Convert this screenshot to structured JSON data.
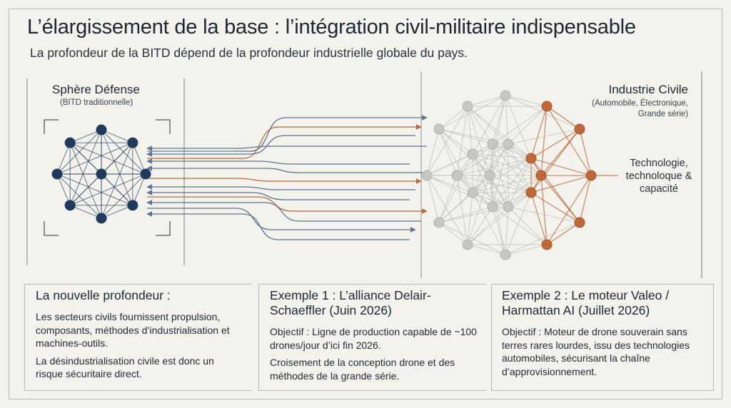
{
  "header": {
    "title": "L’élargissement de la base : l’intégration civil-militaire indispensable",
    "subtitle": "La profondeur de la BITD dépend de la profondeur industrielle globale du pays."
  },
  "defense": {
    "title": "Sphère Défense",
    "subtitle": "(BITD traditionnelle)"
  },
  "civil": {
    "title": "Industrie Civile",
    "subtitle": "(Automobile, Électronique, Grande série)",
    "tech_label": "Technologie, technoloque & capacité"
  },
  "cards": [
    {
      "title": "La nouvelle profondeur :",
      "paragraphs": [
        "Les secteurs civils fournissent propulsion, composants, méthodes d’industrialisation et machines-outils.",
        "La désindustrialisation civile est donc un risque sécuritaire direct."
      ]
    },
    {
      "title": "Exemple 1 : L’alliance Delair-Schaeffler (Juin 2026)",
      "paragraphs": [
        "Objectif : Ligne de production capable de ~100 drones/jour d’ici fin 2026.",
        "Croisement de la conception drone et des méthodes de la grande série."
      ]
    },
    {
      "title": "Exemple 2 : Le moteur Valeo / Harmattan AI (Juillet 2026)",
      "paragraphs": [
        "Objectif : Moteur de drone souverain sans terres rares lourdes, issu des technologies automobiles, sécurisant la chaîne d’approvisionnement."
      ]
    }
  ],
  "colors": {
    "defense_node": "#1f3a5c",
    "civil_node": "#c7c7c2",
    "accent_node": "#c0673a",
    "arrow_blue": "#5d7592",
    "arrow_orange": "#c0673a",
    "frame": "#b9b8b2"
  }
}
